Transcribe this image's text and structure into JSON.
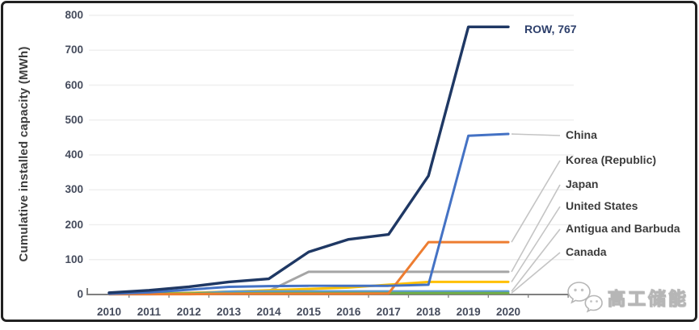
{
  "chart_data": {
    "type": "line",
    "title": "",
    "xlabel": "",
    "ylabel": "Cumulative installed capacity (MWh)",
    "categories": [
      "2010",
      "2011",
      "2012",
      "2013",
      "2014",
      "2015",
      "2016",
      "2017",
      "2018",
      "2019",
      "2020"
    ],
    "ylim": [
      0,
      800
    ],
    "yticks": [
      0,
      100,
      200,
      300,
      400,
      500,
      600,
      700,
      800
    ],
    "grid": "horizontal-light",
    "legend_position": "end-of-line labels on right",
    "series": [
      {
        "name": "ROW",
        "color": "#1F3864",
        "values": [
          5,
          12,
          22,
          36,
          45,
          122,
          158,
          172,
          340,
          767,
          767
        ],
        "end_label": "ROW, 767"
      },
      {
        "name": "China",
        "color": "#4472C4",
        "values": [
          2,
          6,
          14,
          22,
          24,
          25,
          25,
          25,
          28,
          455,
          460
        ]
      },
      {
        "name": "Korea (Republic)",
        "color": "#ED7D31",
        "values": [
          1,
          1,
          1,
          2,
          2,
          2,
          2,
          3,
          150,
          150,
          150
        ]
      },
      {
        "name": "Japan",
        "color": "#A5A5A5",
        "values": [
          2,
          3,
          5,
          8,
          10,
          65,
          65,
          65,
          65,
          65,
          65
        ]
      },
      {
        "name": "United States",
        "color": "#FFC000",
        "values": [
          1,
          2,
          4,
          8,
          12,
          16,
          20,
          28,
          36,
          36,
          36
        ]
      },
      {
        "name": "Antigua and Barbuda",
        "color": "#5B9BD5",
        "values": [
          1,
          1,
          2,
          8,
          9,
          9,
          9,
          9,
          9,
          9,
          9
        ]
      },
      {
        "name": "Canada",
        "color": "#70AD47",
        "values": [
          2,
          2,
          3,
          3,
          4,
          4,
          4,
          4,
          4,
          4,
          4
        ]
      }
    ],
    "colors": {
      "axis_line": "#7f7f7f",
      "gridline": "#efefef",
      "leader_line": "#c4c4c4",
      "tick_text": "#454b5c",
      "label_text": "#3c3c3c",
      "row_label_text": "#2d3f6b"
    },
    "watermark": {
      "icon": "wechat-icon",
      "text": "高工储能"
    }
  }
}
